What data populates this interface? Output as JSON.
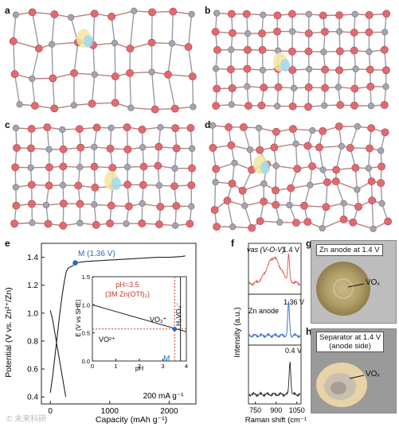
{
  "panels": {
    "a": "a",
    "b": "b",
    "c": "c",
    "d": "d",
    "e": "e",
    "f": "f",
    "g": "g",
    "h": "h"
  },
  "panel_e": {
    "ylabel": "Potential (V vs. Zn²⁺/Zn)",
    "xlabel": "Capacity (mAh g⁻¹)",
    "point_label": "M (1.36 V)",
    "rate": "200 mA g⁻¹",
    "inset": {
      "ylabel": "E (V vs SHE)",
      "xlabel": "pH",
      "ph_note_line1": "pH=3.5",
      "ph_note_line2": "(3M Zn(OTf)₂)",
      "species_vo2plus": "VO₂⁺",
      "species_vo2plus2": "VO²⁺",
      "species_h2vo4": "H₂VO₄⁻",
      "m_label": "M"
    }
  },
  "panel_f": {
    "ylabel": "Intensity (a.u.)",
    "xlabel": "Raman shift (cm⁻¹)",
    "top_annotation": "vas (V-O-V)",
    "top_voltage": "1.4 V",
    "mid_label": "Zn anode",
    "mid_voltage": "1.36 V",
    "bot_voltage": "0.4 V"
  },
  "panel_g": {
    "title": "Zn anode at 1.4 V",
    "vox": "VOₓ"
  },
  "panel_h": {
    "title_line1": "Separator at 1.4 V",
    "title_line2": "(anode side)",
    "vox": "VOₓ"
  },
  "watermark": "© 未来科研",
  "chart_data": [
    {
      "type": "line",
      "panel": "e",
      "xlabel": "Capacity (mAh g⁻¹)",
      "ylabel": "Potential (V vs. Zn²⁺/Zn)",
      "xlim": [
        -150,
        2450
      ],
      "ylim": [
        0.35,
        1.5
      ],
      "xticks": [
        0,
        1000,
        2000
      ],
      "yticks": [
        0.4,
        0.6,
        0.8,
        1.0,
        1.2,
        1.4
      ],
      "series": [
        {
          "x": [
            0,
            40,
            80,
            120,
            160,
            200,
            240,
            270,
            300,
            330,
            380,
            420,
            600,
            800,
            1000,
            1200,
            1400,
            1600,
            1800,
            2000,
            2200,
            2270
          ],
          "y": [
            0.43,
            0.55,
            0.7,
            0.85,
            1.0,
            1.13,
            1.24,
            1.3,
            1.32,
            1.33,
            1.34,
            1.36,
            1.37,
            1.375,
            1.38,
            1.385,
            1.39,
            1.395,
            1.4,
            1.4,
            1.405,
            1.41
          ]
        },
        {
          "x": [
            0,
            40,
            80,
            120,
            160,
            200,
            240,
            260
          ],
          "y": [
            1.02,
            0.95,
            0.85,
            0.75,
            0.65,
            0.55,
            0.45,
            0.4
          ]
        }
      ],
      "marker": {
        "x": 420,
        "y": 1.36,
        "label": "M (1.36 V)"
      },
      "annotations": [
        "200 mA g⁻¹"
      ]
    },
    {
      "type": "line",
      "panel": "e-inset",
      "xlabel": "pH",
      "ylabel": "E (V vs SHE)",
      "xlim": [
        0,
        4
      ],
      "ylim": [
        0,
        1.5
      ],
      "xticks": [
        0,
        1,
        2,
        3,
        4
      ],
      "yticks": [
        0.0,
        0.5,
        1.0,
        1.5
      ],
      "boundary_line": {
        "x": [
          0,
          4
        ],
        "y": [
          1.0,
          0.52
        ]
      },
      "vertical_ph": 3.5,
      "horizontal_e": 0.57,
      "vertical_boundary": 3.75,
      "marker": {
        "x": 3.5,
        "y": 0.57,
        "label": "M"
      }
    },
    {
      "type": "line",
      "panel": "f",
      "xlabel": "Raman shift (cm⁻¹)",
      "ylabel": "Intensity (a.u.)",
      "xlim": [
        700,
        1080
      ],
      "xticks": [
        750,
        900,
        1050
      ],
      "series": [
        {
          "name": "1.4 V",
          "peaks": [
            880,
            990
          ]
        },
        {
          "name": "1.36 V",
          "peaks": [
            990
          ]
        },
        {
          "name": "0.4 V",
          "peaks": [
            1000
          ]
        }
      ]
    }
  ]
}
